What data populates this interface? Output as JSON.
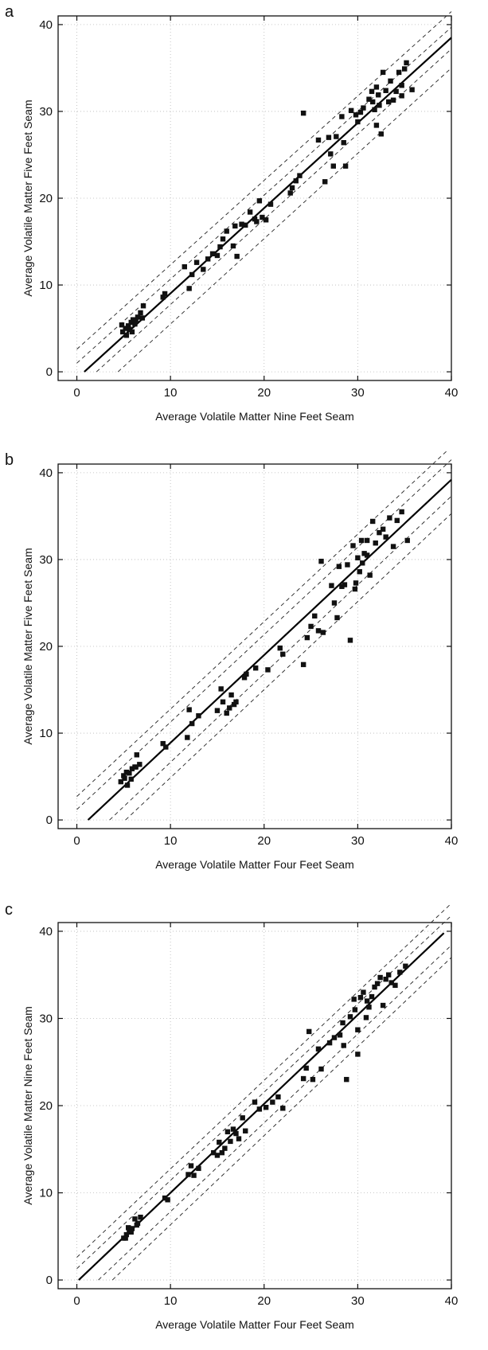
{
  "chart_data": [
    {
      "panel_label": "a",
      "type": "scatter",
      "xlabel": "Average Volatile Matter Nine Feet Seam",
      "ylabel": "Average Volatile Matter Five Feet Seam",
      "xlim": [
        -2,
        40
      ],
      "ylim": [
        -1,
        41
      ],
      "xticks": [
        0,
        10,
        20,
        30,
        40
      ],
      "yticks": [
        0,
        10,
        20,
        30,
        40
      ],
      "grid": "dotted",
      "marker_color": "#111111",
      "regression_line": {
        "x": [
          0.8,
          40
        ],
        "y": [
          0,
          38.5
        ]
      },
      "bands": [
        {
          "x": [
            0,
            40
          ],
          "y": [
            2.6,
            41.5
          ]
        },
        {
          "x": [
            0,
            40
          ],
          "y": [
            1.0,
            39.7
          ]
        },
        {
          "x": [
            2.1,
            40
          ],
          "y": [
            0,
            37.2
          ]
        },
        {
          "x": [
            4.4,
            40
          ],
          "y": [
            0,
            35.0
          ]
        }
      ],
      "x": [
        4.9,
        5.2,
        5.5,
        5.8,
        6.0,
        6.2,
        6.5,
        6.8,
        7.1,
        5.3,
        5.9,
        6.3,
        4.8,
        5.6,
        7.0,
        9.2,
        9.4,
        11.5,
        12.0,
        12.3,
        12.8,
        13.5,
        14.0,
        14.5,
        15.0,
        15.3,
        15.6,
        16.0,
        16.7,
        16.9,
        17.1,
        17.6,
        18.0,
        18.5,
        19.0,
        19.2,
        19.5,
        19.8,
        20.2,
        20.7,
        22.8,
        23.0,
        23.4,
        23.8,
        24.2,
        25.8,
        26.5,
        26.9,
        27.1,
        27.4,
        27.7,
        28.3,
        28.5,
        28.7,
        29.3,
        29.8,
        30.0,
        30.3,
        30.6,
        31.2,
        31.5,
        31.8,
        32.0,
        32.2,
        32.5,
        32.7,
        33.0,
        33.3,
        33.5,
        33.8,
        34.1,
        34.4,
        34.7,
        35.0,
        35.2,
        35.8,
        32.3,
        32.0,
        34.7,
        31.6
      ],
      "y": [
        4.6,
        5.0,
        5.3,
        5.7,
        6.0,
        5.5,
        6.3,
        6.8,
        7.6,
        4.2,
        4.6,
        5.8,
        5.4,
        4.9,
        6.2,
        8.6,
        9.0,
        12.1,
        9.6,
        11.2,
        12.6,
        11.8,
        13.0,
        13.6,
        13.4,
        14.4,
        15.3,
        16.2,
        14.5,
        16.8,
        13.3,
        17.0,
        16.9,
        18.4,
        17.6,
        17.3,
        19.7,
        17.8,
        17.5,
        19.3,
        20.6,
        21.2,
        22.0,
        22.6,
        29.8,
        26.7,
        21.9,
        27.0,
        25.1,
        23.7,
        27.1,
        29.4,
        26.4,
        23.7,
        30.1,
        29.6,
        28.8,
        29.9,
        30.4,
        31.4,
        32.3,
        30.2,
        28.4,
        31.9,
        27.4,
        34.5,
        32.4,
        31.1,
        33.5,
        31.3,
        32.3,
        34.5,
        31.8,
        34.9,
        35.6,
        32.5,
        30.7,
        32.8,
        33.0,
        31.1
      ]
    },
    {
      "panel_label": "b",
      "type": "scatter",
      "xlabel": "Average Volatile Matter Four Feet Seam",
      "ylabel": "Average Volatile Matter Five Feet Seam",
      "xlim": [
        -2,
        40
      ],
      "ylim": [
        -1,
        41
      ],
      "xticks": [
        0,
        10,
        20,
        30,
        40
      ],
      "yticks": [
        0,
        10,
        20,
        30,
        40
      ],
      "grid": "dotted",
      "marker_color": "#111111",
      "regression_line": {
        "x": [
          1.2,
          40
        ],
        "y": [
          0,
          39.2
        ]
      },
      "bands": [
        {
          "x": [
            0,
            40
          ],
          "y": [
            2.7,
            43.0
          ]
        },
        {
          "x": [
            0,
            40
          ],
          "y": [
            1.2,
            41.5
          ]
        },
        {
          "x": [
            3.5,
            40
          ],
          "y": [
            0,
            37.3
          ]
        },
        {
          "x": [
            5.2,
            40
          ],
          "y": [
            0,
            35.3
          ]
        }
      ],
      "x": [
        4.7,
        5.0,
        5.3,
        5.6,
        5.9,
        6.2,
        6.4,
        6.7,
        5.4,
        5.8,
        6.3,
        5.1,
        9.2,
        9.5,
        11.8,
        12.0,
        12.3,
        13.0,
        15.0,
        15.4,
        15.6,
        16.0,
        16.3,
        16.5,
        16.8,
        17.0,
        17.9,
        18.1,
        19.1,
        20.4,
        21.7,
        22.0,
        24.2,
        24.6,
        25.0,
        25.4,
        25.8,
        26.1,
        26.3,
        27.2,
        27.5,
        27.8,
        28.0,
        28.3,
        28.6,
        28.9,
        29.2,
        29.5,
        29.8,
        30.0,
        30.2,
        30.4,
        30.7,
        31.0,
        31.3,
        31.6,
        31.9,
        32.3,
        32.7,
        33.0,
        33.4,
        33.8,
        34.2,
        34.7,
        35.3,
        31.0,
        29.7,
        30.5
      ],
      "y": [
        4.4,
        5.1,
        5.5,
        5.4,
        5.9,
        6.1,
        7.5,
        6.4,
        4.0,
        4.7,
        6.1,
        4.8,
        8.8,
        8.4,
        9.5,
        12.7,
        11.1,
        12.0,
        12.6,
        15.1,
        13.6,
        12.3,
        12.9,
        14.4,
        13.3,
        13.6,
        16.4,
        16.8,
        17.5,
        17.3,
        19.8,
        19.1,
        17.9,
        21.0,
        22.3,
        23.5,
        21.8,
        29.8,
        21.6,
        27.0,
        25.0,
        23.3,
        29.2,
        26.9,
        27.1,
        29.4,
        20.7,
        31.6,
        27.3,
        30.2,
        28.6,
        32.2,
        30.7,
        32.2,
        28.2,
        34.4,
        31.9,
        33.1,
        33.5,
        32.6,
        34.8,
        31.5,
        34.5,
        35.5,
        32.2,
        30.5,
        26.6,
        29.6
      ]
    },
    {
      "panel_label": "c",
      "type": "scatter",
      "xlabel": "Average Volatile Matter Four Feet Seam",
      "ylabel": "Average Volatile Matter Nine Feet Seam",
      "xlim": [
        -2,
        40
      ],
      "ylim": [
        -1,
        41
      ],
      "xticks": [
        0,
        10,
        20,
        30,
        40
      ],
      "yticks": [
        0,
        10,
        20,
        30,
        40
      ],
      "grid": "dotted",
      "marker_color": "#111111",
      "regression_line": {
        "x": [
          0.2,
          39.2
        ],
        "y": [
          0,
          39.8
        ]
      },
      "bands": [
        {
          "x": [
            0,
            40
          ],
          "y": [
            2.6,
            43.2
          ]
        },
        {
          "x": [
            0,
            40
          ],
          "y": [
            1.3,
            41.8
          ]
        },
        {
          "x": [
            2.3,
            40
          ],
          "y": [
            0,
            38.4
          ]
        },
        {
          "x": [
            3.8,
            40
          ],
          "y": [
            0,
            37.0
          ]
        }
      ],
      "x": [
        5.0,
        5.3,
        5.6,
        5.9,
        6.2,
        6.5,
        6.8,
        5.5,
        5.8,
        6.4,
        5.2,
        9.4,
        9.7,
        11.9,
        12.2,
        12.5,
        13.0,
        14.6,
        15.0,
        15.2,
        15.5,
        15.8,
        16.1,
        16.4,
        16.7,
        17.0,
        17.3,
        17.7,
        18.0,
        19.0,
        19.5,
        20.2,
        20.9,
        21.5,
        22.0,
        24.2,
        24.5,
        24.8,
        25.2,
        25.8,
        26.1,
        27.0,
        27.5,
        28.1,
        28.4,
        28.8,
        29.2,
        29.6,
        30.0,
        30.3,
        30.6,
        30.9,
        31.2,
        31.5,
        31.8,
        32.1,
        32.4,
        32.7,
        33.0,
        33.3,
        33.6,
        34.0,
        34.5,
        35.1,
        28.5,
        30.0,
        31.0,
        29.7
      ],
      "y": [
        4.8,
        5.2,
        5.6,
        5.9,
        7.0,
        6.5,
        7.2,
        6.0,
        5.5,
        6.3,
        4.8,
        9.4,
        9.2,
        12.1,
        13.1,
        12.0,
        12.8,
        14.6,
        14.3,
        15.8,
        14.6,
        15.1,
        17.0,
        15.9,
        17.3,
        16.8,
        16.2,
        18.6,
        17.1,
        20.4,
        19.6,
        19.8,
        20.4,
        21.0,
        19.7,
        23.1,
        24.3,
        28.5,
        23.0,
        26.5,
        24.2,
        27.2,
        27.8,
        28.1,
        29.5,
        23.0,
        30.2,
        32.2,
        28.7,
        32.4,
        33.0,
        30.1,
        31.3,
        32.5,
        33.6,
        34.0,
        34.7,
        31.5,
        34.5,
        35.0,
        34.1,
        33.8,
        35.3,
        36.0,
        26.9,
        25.9,
        32.0,
        31.0
      ]
    }
  ]
}
